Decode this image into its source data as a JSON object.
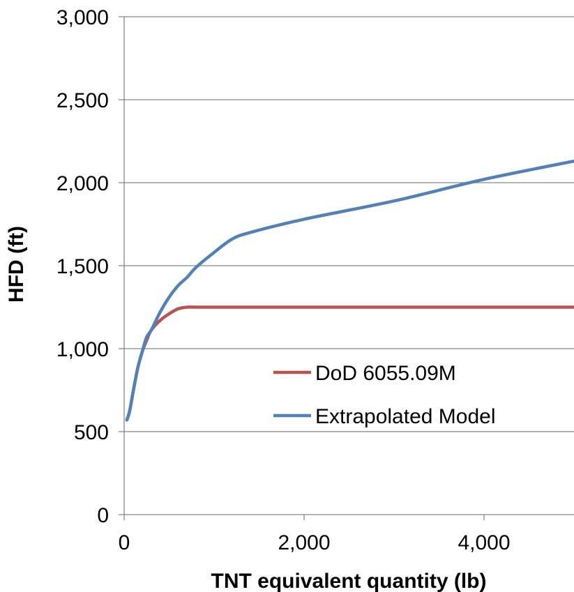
{
  "chart_data": {
    "type": "line",
    "xlabel": "TNT equivalent quantity (lb)",
    "ylabel": "HFD (ft)",
    "xlim": [
      0,
      5000
    ],
    "ylim": [
      0,
      3000
    ],
    "x_ticks": [
      0,
      2000,
      4000
    ],
    "x_tick_labels": [
      "0",
      "2,000",
      "4,000"
    ],
    "y_ticks": [
      0,
      500,
      1000,
      1500,
      2000,
      2500,
      3000
    ],
    "y_tick_labels": [
      "0",
      "500",
      "1,000",
      "1,500",
      "2,000",
      "2,500",
      "3,000"
    ],
    "grid": "horizontal",
    "legend_position": "center-right",
    "series": [
      {
        "name": "DoD 6055.09M",
        "color": "#c0504d",
        "x": [
          30,
          60,
          100,
          150,
          200,
          250,
          300,
          400,
          500,
          600,
          700,
          800,
          1000,
          1500,
          2000,
          3000,
          4000,
          5000
        ],
        "y": [
          570,
          620,
          740,
          880,
          980,
          1050,
          1110,
          1170,
          1210,
          1240,
          1250,
          1250,
          1250,
          1250,
          1250,
          1250,
          1250,
          1250
        ]
      },
      {
        "name": "Extrapolated Model",
        "color": "#4f81bd",
        "x": [
          30,
          60,
          100,
          150,
          200,
          250,
          300,
          400,
          500,
          600,
          700,
          800,
          1000,
          1200,
          1400,
          2000,
          3000,
          4000,
          5000
        ],
        "y": [
          570,
          620,
          740,
          880,
          980,
          1070,
          1110,
          1220,
          1310,
          1380,
          1430,
          1490,
          1580,
          1660,
          1700,
          1780,
          1890,
          2020,
          2130
        ]
      }
    ]
  }
}
